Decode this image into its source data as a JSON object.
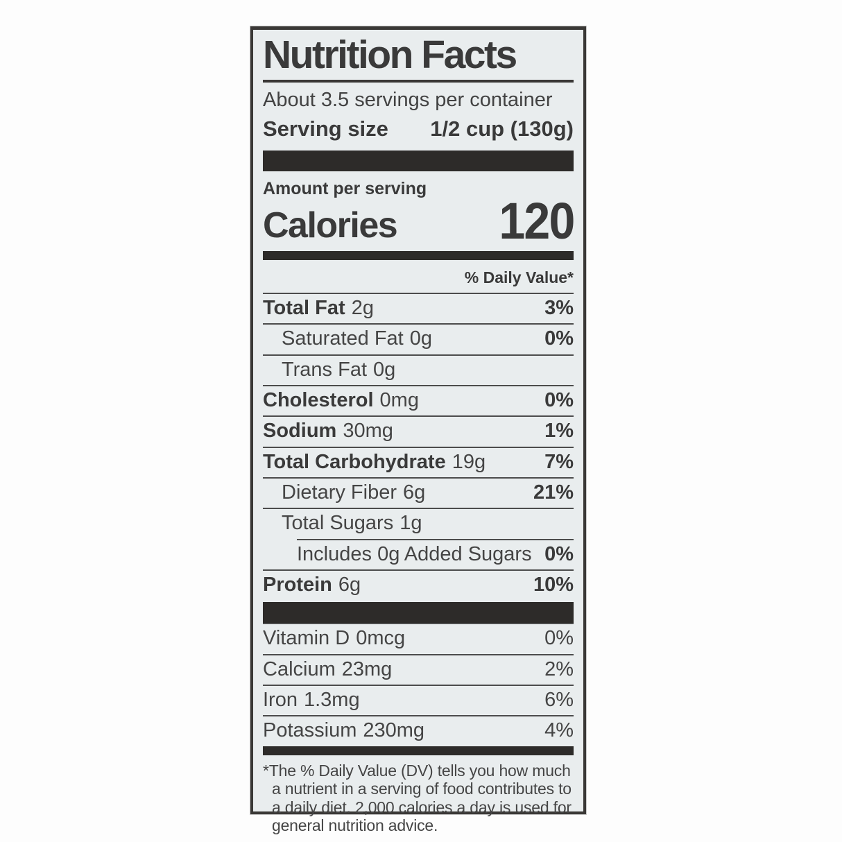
{
  "label": {
    "title": "Nutrition Facts",
    "servings_per_container": "About 3.5 servings per container",
    "serving_size": {
      "label": "Serving size",
      "value": "1/2 cup (130g)"
    },
    "amount_per_serving": "Amount per serving",
    "calories": {
      "label": "Calories",
      "value": "120"
    },
    "daily_value_header": "% Daily Value*",
    "nutrients": [
      {
        "name": "Total Fat",
        "amount": "2g",
        "dv": "3%"
      },
      {
        "name": "Saturated Fat",
        "amount": "0g",
        "dv": "0%"
      },
      {
        "name": "Trans Fat",
        "amount": "0g",
        "dv": ""
      },
      {
        "name": "Cholesterol",
        "amount": "0mg",
        "dv": "0%"
      },
      {
        "name": "Sodium",
        "amount": "30mg",
        "dv": "1%"
      },
      {
        "name": "Total Carbohydrate",
        "amount": "19g",
        "dv": "7%"
      },
      {
        "name": "Dietary Fiber",
        "amount": "6g",
        "dv": "21%"
      },
      {
        "name": "Total Sugars",
        "amount": "1g",
        "dv": ""
      },
      {
        "name": "Includes 0g Added Sugars",
        "amount": "",
        "dv": "0%"
      },
      {
        "name": "Protein",
        "amount": "6g",
        "dv": "10%"
      }
    ],
    "micronutrients": [
      {
        "name": "Vitamin D",
        "amount": "0mcg",
        "dv": "0%"
      },
      {
        "name": "Calcium",
        "amount": "23mg",
        "dv": "2%"
      },
      {
        "name": "Iron",
        "amount": "1.3mg",
        "dv": "6%"
      },
      {
        "name": "Potassium",
        "amount": "230mg",
        "dv": "4%"
      }
    ],
    "footnote": "*The % Daily Value (DV) tells you how much a nutrient in a serving of food contributes to a daily diet. 2,000 calories a day is used for general nutrition advice.",
    "colors": {
      "label_bg": "#e9edee",
      "text": "#3d3d3d",
      "bar": "#2d2b29"
    }
  }
}
